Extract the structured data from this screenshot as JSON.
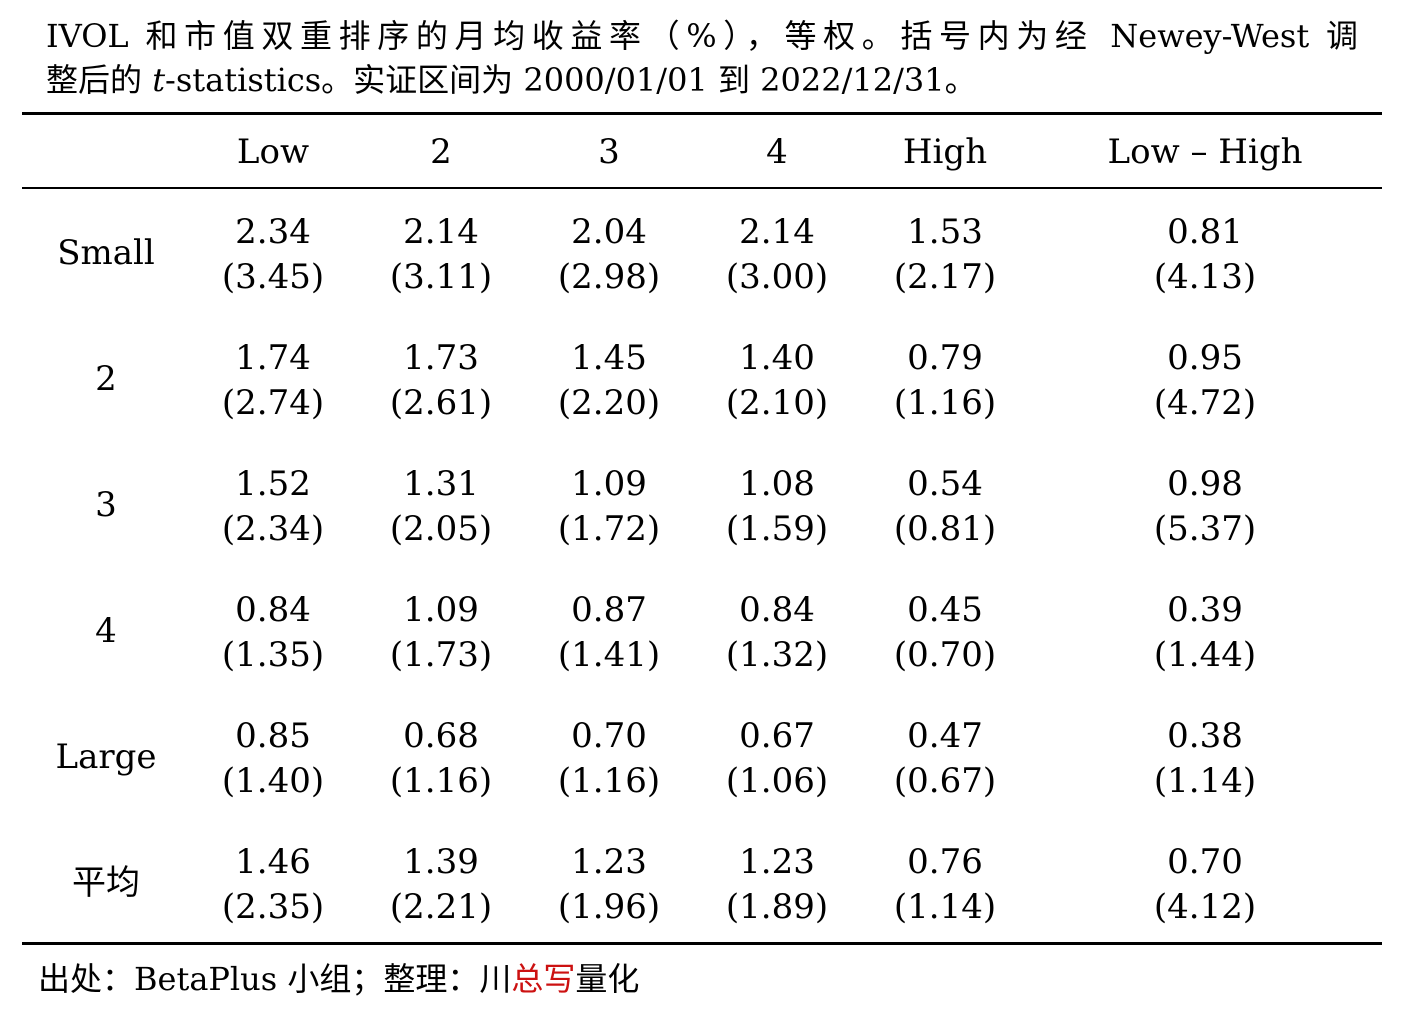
{
  "caption": {
    "line1": "IVOL 和市值双重排序的月均收益率（%），等权。括号内为经 Newey-West 调",
    "line2_prefix": "整后的 ",
    "line2_italic": "t",
    "line2_suffix": "-statistics。实证区间为 2000/01/01 到 2022/12/31。"
  },
  "table": {
    "columns": [
      "Low",
      "2",
      "3",
      "4",
      "High",
      "Low – High"
    ],
    "rows": [
      {
        "label": "Small",
        "values": [
          "2.34",
          "2.14",
          "2.04",
          "2.14",
          "1.53",
          "0.81"
        ],
        "tstats": [
          "(3.45)",
          "(3.11)",
          "(2.98)",
          "(3.00)",
          "(2.17)",
          "(4.13)"
        ]
      },
      {
        "label": "2",
        "values": [
          "1.74",
          "1.73",
          "1.45",
          "1.40",
          "0.79",
          "0.95"
        ],
        "tstats": [
          "(2.74)",
          "(2.61)",
          "(2.20)",
          "(2.10)",
          "(1.16)",
          "(4.72)"
        ]
      },
      {
        "label": "3",
        "values": [
          "1.52",
          "1.31",
          "1.09",
          "1.08",
          "0.54",
          "0.98"
        ],
        "tstats": [
          "(2.34)",
          "(2.05)",
          "(1.72)",
          "(1.59)",
          "(0.81)",
          "(5.37)"
        ]
      },
      {
        "label": "4",
        "values": [
          "0.84",
          "1.09",
          "0.87",
          "0.84",
          "0.45",
          "0.39"
        ],
        "tstats": [
          "(1.35)",
          "(1.73)",
          "(1.41)",
          "(1.32)",
          "(0.70)",
          "(1.44)"
        ]
      },
      {
        "label": "Large",
        "values": [
          "0.85",
          "0.68",
          "0.70",
          "0.67",
          "0.47",
          "0.38"
        ],
        "tstats": [
          "(1.40)",
          "(1.16)",
          "(1.16)",
          "(1.06)",
          "(0.67)",
          "(1.14)"
        ]
      },
      {
        "label": "平均",
        "values": [
          "1.46",
          "1.39",
          "1.23",
          "1.23",
          "0.76",
          "0.70"
        ],
        "tstats": [
          "(2.35)",
          "(2.21)",
          "(1.96)",
          "(1.89)",
          "(1.14)",
          "(4.12)"
        ]
      }
    ]
  },
  "footer": {
    "source_prefix": "出处：BetaPlus 小组；整理：川",
    "accent_text": "总写",
    "suffix": "量化",
    "accent_color": "#cc1111"
  }
}
